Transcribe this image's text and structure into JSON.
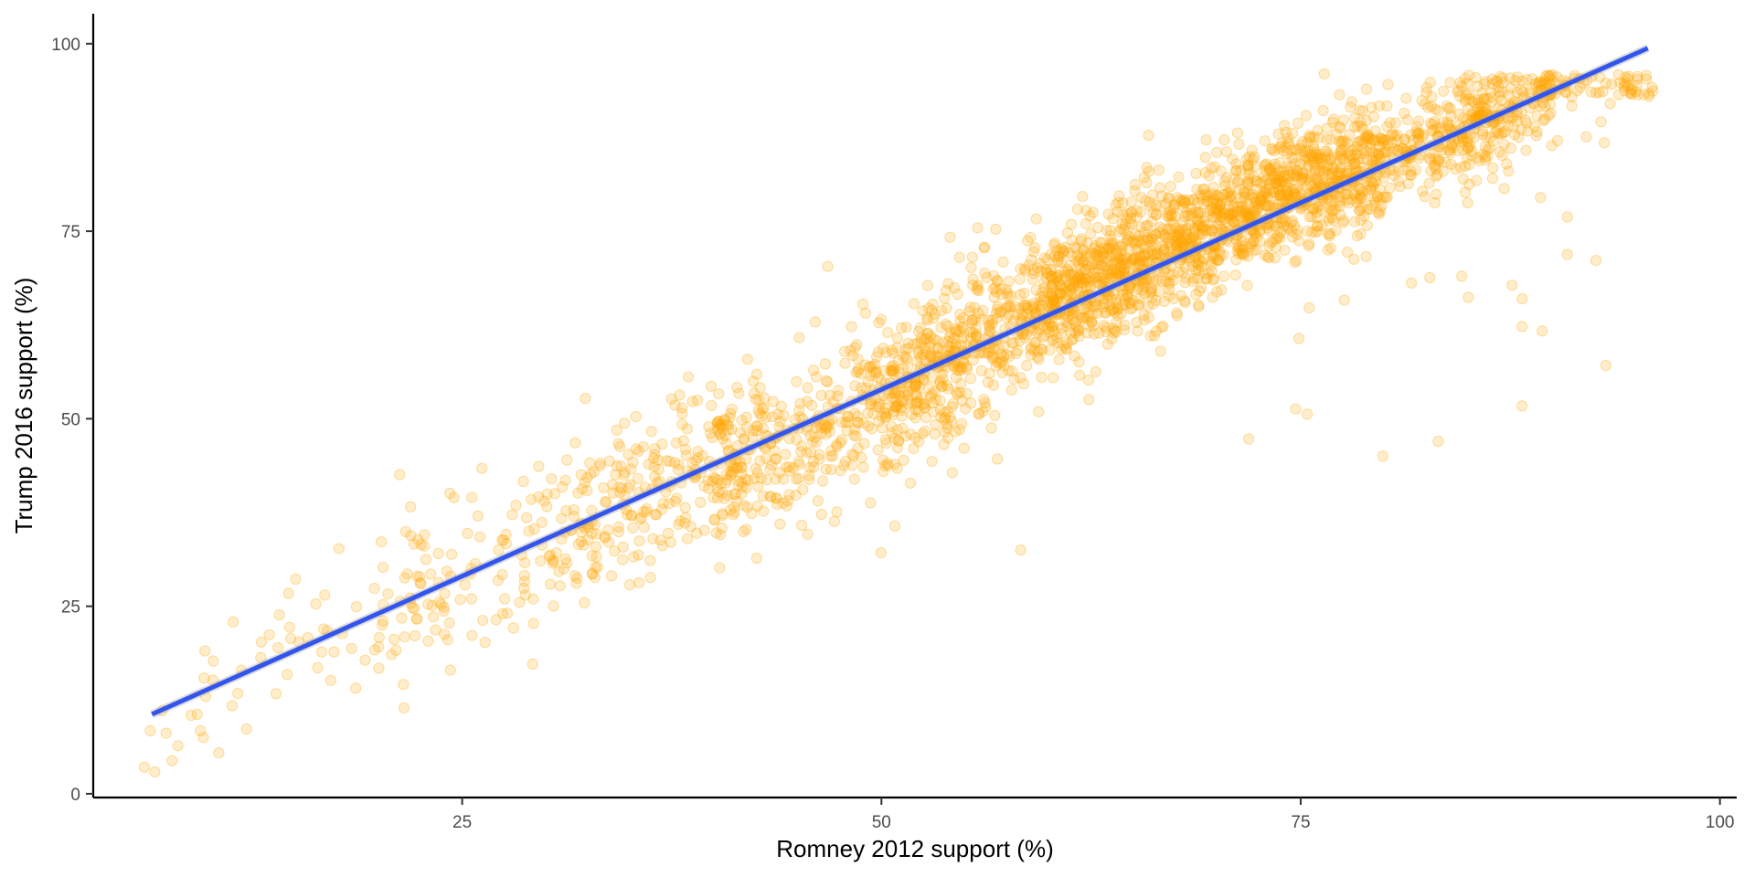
{
  "chart_data": {
    "type": "scatter",
    "title": "",
    "xlabel": "Romney 2012 support (%)",
    "ylabel": "Trump 2016 support (%)",
    "xlim": [
      3,
      101
    ],
    "ylim": [
      -0.5,
      104
    ],
    "x_ticks": [
      25,
      50,
      75,
      100
    ],
    "y_ticks": [
      0,
      25,
      50,
      75,
      100
    ],
    "x_tick_labels": [
      "25",
      "50",
      "75",
      "100"
    ],
    "y_tick_labels": [
      "0",
      "25",
      "50",
      "75",
      "100"
    ],
    "grid": false,
    "point_color": "#FFA500",
    "point_opacity": 0.2,
    "line_color": "#3355EE",
    "fit_line": {
      "x": [
        6.5,
        95.7
      ],
      "y": [
        10.6,
        99.4
      ]
    },
    "cloud_segments": [
      {
        "x_min": 6,
        "x_max": 20,
        "sd": 5,
        "count": 45
      },
      {
        "x_min": 20,
        "x_max": 30,
        "sd": 5.5,
        "count": 110
      },
      {
        "x_min": 30,
        "x_max": 40,
        "sd": 5.5,
        "count": 210
      },
      {
        "x_min": 40,
        "x_max": 50,
        "sd": 5.5,
        "count": 330
      },
      {
        "x_min": 50,
        "x_max": 60,
        "sd": 5,
        "count": 520
      },
      {
        "x_min": 60,
        "x_max": 70,
        "sd": 4.5,
        "count": 780
      },
      {
        "x_min": 70,
        "x_max": 80,
        "sd": 4,
        "count": 720
      },
      {
        "x_min": 80,
        "x_max": 90,
        "sd": 3.5,
        "count": 380
      },
      {
        "x_min": 90,
        "x_max": 96,
        "sd": 3,
        "count": 60
      }
    ],
    "outliers": [
      [
        58.3,
        32.5
      ],
      [
        50.8,
        35.7
      ],
      [
        71.9,
        47.3
      ],
      [
        74.7,
        51.3
      ],
      [
        75.4,
        50.6
      ],
      [
        79.9,
        45
      ],
      [
        83.2,
        47
      ],
      [
        88.2,
        51.7
      ],
      [
        93.2,
        57.1
      ],
      [
        88.2,
        62.3
      ],
      [
        89.4,
        61.7
      ],
      [
        88.2,
        66
      ],
      [
        85,
        66.2
      ],
      [
        87.6,
        67.8
      ],
      [
        92.6,
        71.1
      ],
      [
        90.9,
        71.9
      ],
      [
        90.9,
        76.9
      ],
      [
        89.3,
        79.5
      ],
      [
        96,
        93.7
      ],
      [
        93.1,
        86.8
      ],
      [
        74.9,
        60.7
      ],
      [
        77.6,
        65.8
      ],
      [
        75.5,
        64.8
      ],
      [
        81.6,
        68.1
      ],
      [
        82.7,
        68.8
      ],
      [
        84.6,
        69
      ],
      [
        6.4,
        8.4
      ],
      [
        7.7,
        4.4
      ],
      [
        9.4,
        8.4
      ],
      [
        9.2,
        10.6
      ],
      [
        13.5,
        21.2
      ],
      [
        15.8,
        20.8
      ],
      [
        29.2,
        17.3
      ],
      [
        46.8,
        70.3
      ],
      [
        54.1,
        74.2
      ]
    ]
  }
}
